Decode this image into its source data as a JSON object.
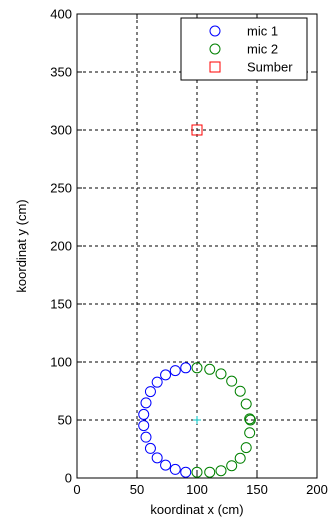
{
  "chart_data": {
    "type": "scatter",
    "title": "",
    "xlabel": "koordinat x (cm)",
    "ylabel": "koordinat y (cm)",
    "xlim": [
      0,
      200
    ],
    "ylim": [
      0,
      400
    ],
    "xticks": [
      "0",
      "50",
      "100",
      "150",
      "200"
    ],
    "yticks": [
      "0",
      "50",
      "100",
      "150",
      "200",
      "250",
      "300",
      "350",
      "400"
    ],
    "grid": true,
    "legend_position": "top-right",
    "series": [
      {
        "name": "mic 1",
        "marker": "circle",
        "color": "#0000ff",
        "x": [
          90.6,
          81.9,
          73.8,
          66.8,
          61.2,
          57.5,
          55.6,
          55.6,
          57.5,
          61.2,
          66.8,
          73.8,
          81.9,
          90.6
        ],
        "y": [
          95.0,
          92.6,
          88.9,
          82.6,
          74.5,
          64.8,
          54.8,
          45.2,
          35.2,
          25.5,
          17.4,
          11.1,
          7.4,
          5.0
        ]
      },
      {
        "name": "mic 2",
        "marker": "circle",
        "color": "#008000",
        "x": [
          100.0,
          110.6,
          120.0,
          128.9,
          136.0,
          141.0,
          143.9,
          144.5,
          143.9,
          141.0,
          136.0,
          128.9,
          120.0,
          110.6,
          100.0
        ],
        "y": [
          95.0,
          93.7,
          89.8,
          83.5,
          74.8,
          63.8,
          51.0,
          50.0,
          39.0,
          26.2,
          17.0,
          10.6,
          6.3,
          5.0,
          5.0
        ]
      },
      {
        "name": "Sumber",
        "marker": "square",
        "color": "#ff0000",
        "x": [
          100
        ],
        "y": [
          300
        ]
      },
      {
        "marker": "plus",
        "color": "#00c0c0",
        "x": [
          100
        ],
        "y": [
          50
        ]
      }
    ]
  }
}
